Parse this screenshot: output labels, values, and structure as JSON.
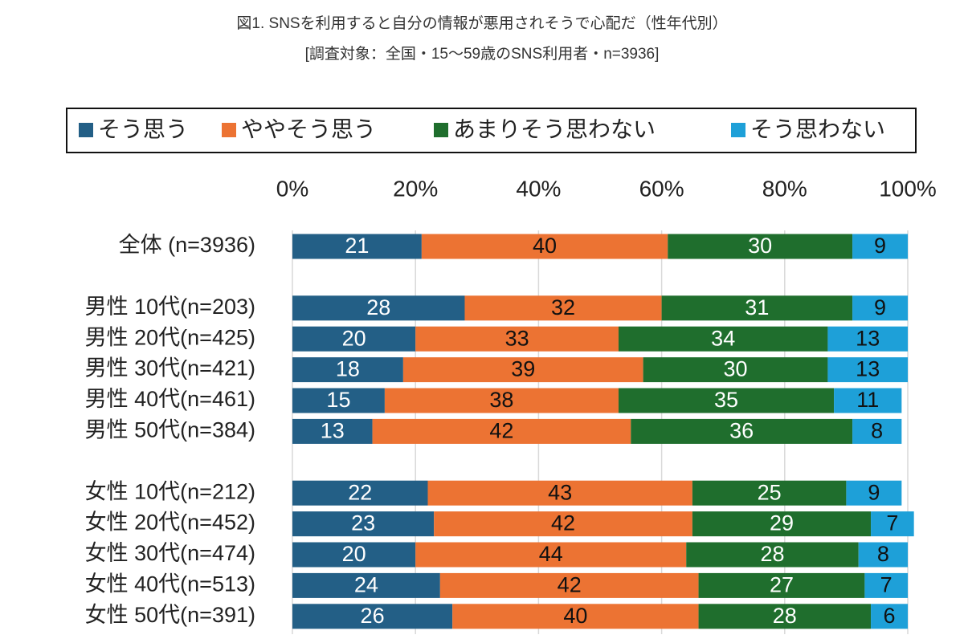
{
  "chart_data": {
    "type": "stacked_barh",
    "title": "図1. SNSを利用すると自分の情報が悪用されそうで心配だ（性年代別）",
    "subtitle": "[調査対象：全国・15〜59歳のSNS利用者・n=3936]",
    "categories": [
      "全体 (n=3936)",
      null,
      "男性 10代(n=203)",
      "男性 20代(n=425)",
      "男性 30代(n=421)",
      "男性 40代(n=461)",
      "男性 50代(n=384)",
      null,
      "女性 10代(n=212)",
      "女性 20代(n=452)",
      "女性 30代(n=474)",
      "女性 40代(n=513)",
      "女性 50代(n=391)"
    ],
    "series": [
      {
        "name": "そう思う",
        "color": "#235f86",
        "values": [
          21,
          null,
          28,
          20,
          18,
          15,
          13,
          null,
          22,
          23,
          20,
          24,
          26
        ]
      },
      {
        "name": "ややそう思う",
        "color": "#ec7333",
        "values": [
          40,
          null,
          32,
          33,
          39,
          38,
          42,
          null,
          43,
          42,
          44,
          42,
          40
        ]
      },
      {
        "name": "あまりそう思わない",
        "color": "#1f6e2d",
        "values": [
          30,
          null,
          31,
          34,
          30,
          35,
          36,
          null,
          25,
          29,
          28,
          27,
          28
        ]
      },
      {
        "name": "そう思わない",
        "color": "#1ea0d8",
        "values": [
          9,
          null,
          9,
          13,
          13,
          11,
          8,
          null,
          9,
          7,
          8,
          7,
          6
        ]
      }
    ],
    "xlim": [
      0,
      100
    ],
    "xticks": [
      {
        "value": 0,
        "label": "0%"
      },
      {
        "value": 20,
        "label": "20%"
      },
      {
        "value": 40,
        "label": "40%"
      },
      {
        "value": 60,
        "label": "60%"
      },
      {
        "value": 80,
        "label": "80%"
      },
      {
        "value": 100,
        "label": "100%"
      }
    ],
    "grid": true,
    "legend": "top"
  }
}
